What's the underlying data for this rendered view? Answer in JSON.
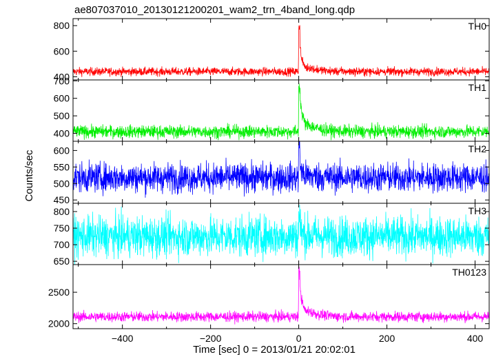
{
  "chart_data": {
    "type": "line",
    "title": "ae807037010_20130121200201_wam2_trn_4band_long.qdp",
    "xlabel": "Time [sec] 0 = 2013/01/21 20:02:01",
    "ylabel": "Counts/sec",
    "xlim": [
      -512,
      432
    ],
    "x_ticks": [
      -400,
      -200,
      0,
      200,
      400
    ],
    "x_tick_labels": [
      "−400",
      "−200",
      "0",
      "200",
      "400"
    ],
    "grid": false,
    "panels": [
      {
        "label": "TH0",
        "color": "#ff0000",
        "ylim": [
          375,
          855
        ],
        "y_ticks": [
          400,
          600,
          800
        ],
        "baseline": 440,
        "noise": 16,
        "burst_peak": 850,
        "decay_level": 560
      },
      {
        "label": "TH1",
        "color": "#00ee00",
        "ylim": [
          355,
          705
        ],
        "y_ticks": [
          400,
          500,
          600,
          700
        ],
        "baseline": 410,
        "noise": 18,
        "burst_peak": 700,
        "decay_level": 560
      },
      {
        "label": "TH2",
        "color": "#0000ff",
        "ylim": [
          440,
          628
        ],
        "y_ticks": [
          450,
          500,
          550,
          600
        ],
        "baseline": 518,
        "noise": 22,
        "burst_peak": 625,
        "decay_level": 540
      },
      {
        "label": "TH3",
        "color": "#00ffff",
        "ylim": [
          640,
          825
        ],
        "y_ticks": [
          650,
          700,
          750,
          800
        ],
        "baseline": 725,
        "noise": 30,
        "burst_peak": 800,
        "decay_level": 740
      },
      {
        "label": "TH0123",
        "color": "#ff00ff",
        "ylim": [
          1920,
          2940
        ],
        "y_ticks": [
          2000,
          2500
        ],
        "baseline": 2110,
        "noise": 40,
        "burst_peak": 2920,
        "decay_level": 2450
      }
    ]
  }
}
